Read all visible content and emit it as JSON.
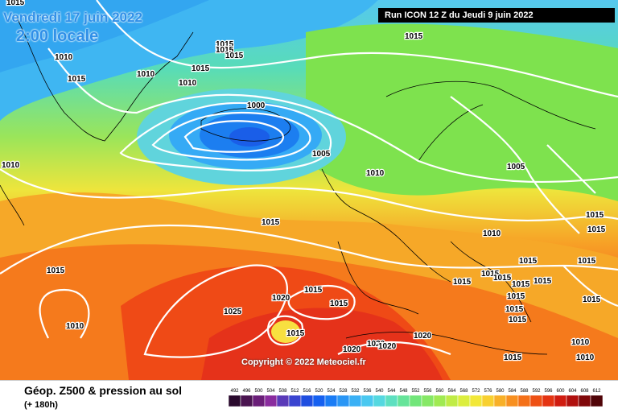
{
  "header": {
    "date_line1": "Vendredi 17 juin 2022",
    "date_line2": "2:00 locale",
    "run_info": "Run ICON 12 Z du Jeudi 9 juin 2022"
  },
  "map": {
    "isobar_labels": [
      "1015",
      "1010",
      "1015",
      "1015",
      "1010",
      "1015",
      "1010",
      "1015",
      "1015",
      "1015",
      "1000",
      "1005",
      "1010",
      "1010",
      "1005",
      "1015",
      "1015",
      "1010",
      "1015",
      "1015",
      "1015",
      "1015",
      "1015",
      "1015",
      "1015",
      "1015",
      "1015",
      "1015",
      "1015",
      "1015",
      "1020",
      "1015",
      "1015",
      "1025",
      "1015",
      "1015",
      "1010",
      "1020",
      "1020",
      "1020",
      "1020",
      "1015",
      "1010",
      "1010"
    ],
    "copyright": "Copyright © 2022 Meteociel.fr"
  },
  "footer": {
    "title": "Géop. Z500 & pression au sol",
    "subtitle": "(+ 180h)",
    "scale_values": [
      "492",
      "496",
      "500",
      "504",
      "508",
      "512",
      "516",
      "520",
      "524",
      "528",
      "532",
      "536",
      "540",
      "544",
      "548",
      "552",
      "556",
      "560",
      "564",
      "568",
      "572",
      "576",
      "580",
      "584",
      "588",
      "592",
      "596",
      "600",
      "604",
      "608",
      "612"
    ],
    "scale_colors": [
      "#2a0a2e",
      "#4a1450",
      "#6a1e78",
      "#8a2c9e",
      "#5a3ab8",
      "#3a44d0",
      "#1f4ee0",
      "#1560f0",
      "#1a7cf5",
      "#2a96f5",
      "#3ab0f5",
      "#4ac8f0",
      "#55d8e0",
      "#5ee0c0",
      "#66e49a",
      "#72e67a",
      "#86e866",
      "#a0ea52",
      "#c0ec46",
      "#dcee3e",
      "#f2e838",
      "#f8d030",
      "#f8b028",
      "#f89020",
      "#f47018",
      "#ee5014",
      "#e43412",
      "#d01c10",
      "#b0100e",
      "#80080a",
      "#500408"
    ]
  }
}
